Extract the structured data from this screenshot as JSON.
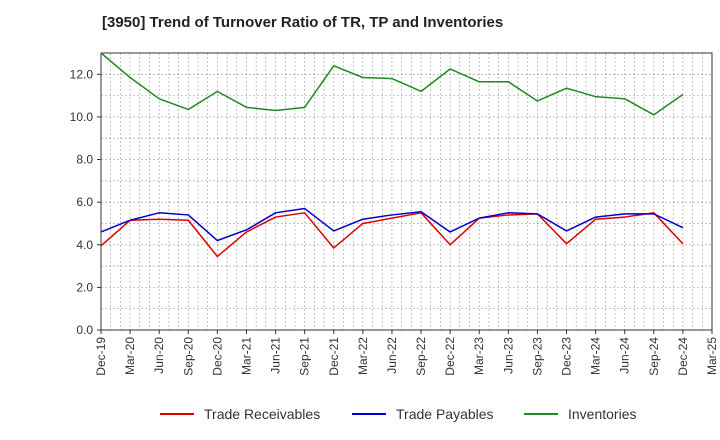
{
  "chart_data": {
    "type": "line",
    "title": "[3950]  Trend of Turnover Ratio of TR, TP and Inventories",
    "xlabel": "",
    "ylabel": "",
    "ylim": [
      0,
      13
    ],
    "yticks": [
      0,
      2,
      4,
      6,
      8,
      10,
      12
    ],
    "ytick_labels": [
      "0.0",
      "2.0",
      "4.0",
      "6.0",
      "8.0",
      "10.0",
      "12.0"
    ],
    "x": [
      "Dec-19",
      "Jan-20",
      "Feb-20",
      "Mar-20",
      "Apr-20",
      "May-20",
      "Jun-20",
      "Jul-20",
      "Aug-20",
      "Sep-20",
      "Oct-20",
      "Nov-20",
      "Dec-20",
      "Jan-21",
      "Feb-21",
      "Mar-21",
      "Apr-21",
      "May-21",
      "Jun-21",
      "Jul-21",
      "Aug-21",
      "Sep-21",
      "Oct-21",
      "Nov-21",
      "Dec-21",
      "Jan-22",
      "Feb-22",
      "Mar-22",
      "Apr-22",
      "May-22",
      "Jun-22",
      "Jul-22",
      "Aug-22",
      "Sep-22",
      "Oct-22",
      "Nov-22",
      "Dec-22",
      "Jan-23",
      "Feb-23",
      "Mar-23",
      "Apr-23",
      "May-23",
      "Jun-23",
      "Jul-23",
      "Aug-23",
      "Sep-23",
      "Oct-23",
      "Nov-23",
      "Dec-23",
      "Jan-24",
      "Feb-24",
      "Mar-24",
      "Apr-24",
      "May-24",
      "Jun-24",
      "Jul-24",
      "Aug-24",
      "Sep-24",
      "Oct-24",
      "Nov-24",
      "Dec-24",
      "Jan-25",
      "Feb-25",
      "Mar-25"
    ],
    "xtick_labels": [
      "Dec-19",
      "Mar-20",
      "Jun-20",
      "Sep-20",
      "Dec-20",
      "Mar-21",
      "Jun-21",
      "Sep-21",
      "Dec-21",
      "Mar-22",
      "Jun-22",
      "Sep-22",
      "Dec-22",
      "Mar-23",
      "Jun-23",
      "Sep-23",
      "Dec-23",
      "Mar-24",
      "Jun-24",
      "Sep-24",
      "Dec-24",
      "Mar-25"
    ],
    "grid": true,
    "legend_position": "bottom",
    "series": [
      {
        "name": "Trade Receivables",
        "color": "#dd0000",
        "points": [
          {
            "x": "Dec-19",
            "y": 3.95
          },
          {
            "x": "Mar-20",
            "y": 5.15
          },
          {
            "x": "Jun-20",
            "y": 5.2
          },
          {
            "x": "Sep-20",
            "y": 5.15
          },
          {
            "x": "Dec-20",
            "y": 3.45
          },
          {
            "x": "Mar-21",
            "y": 4.6
          },
          {
            "x": "Jun-21",
            "y": 5.3
          },
          {
            "x": "Sep-21",
            "y": 5.5
          },
          {
            "x": "Dec-21",
            "y": 3.85
          },
          {
            "x": "Mar-22",
            "y": 5.0
          },
          {
            "x": "Jun-22",
            "y": 5.25
          },
          {
            "x": "Sep-22",
            "y": 5.5
          },
          {
            "x": "Dec-22",
            "y": 4.0
          },
          {
            "x": "Mar-23",
            "y": 5.25
          },
          {
            "x": "Jun-23",
            "y": 5.4
          },
          {
            "x": "Sep-23",
            "y": 5.45
          },
          {
            "x": "Dec-23",
            "y": 4.05
          },
          {
            "x": "Mar-24",
            "y": 5.2
          },
          {
            "x": "Jun-24",
            "y": 5.3
          },
          {
            "x": "Sep-24",
            "y": 5.5
          },
          {
            "x": "Dec-24",
            "y": 4.05
          }
        ]
      },
      {
        "name": "Trade Payables",
        "color": "#0000cc",
        "points": [
          {
            "x": "Dec-19",
            "y": 4.6
          },
          {
            "x": "Mar-20",
            "y": 5.15
          },
          {
            "x": "Jun-20",
            "y": 5.5
          },
          {
            "x": "Sep-20",
            "y": 5.4
          },
          {
            "x": "Dec-20",
            "y": 4.2
          },
          {
            "x": "Mar-21",
            "y": 4.7
          },
          {
            "x": "Jun-21",
            "y": 5.5
          },
          {
            "x": "Sep-21",
            "y": 5.7
          },
          {
            "x": "Dec-21",
            "y": 4.65
          },
          {
            "x": "Mar-22",
            "y": 5.2
          },
          {
            "x": "Jun-22",
            "y": 5.4
          },
          {
            "x": "Sep-22",
            "y": 5.55
          },
          {
            "x": "Dec-22",
            "y": 4.6
          },
          {
            "x": "Mar-23",
            "y": 5.25
          },
          {
            "x": "Jun-23",
            "y": 5.5
          },
          {
            "x": "Sep-23",
            "y": 5.45
          },
          {
            "x": "Dec-23",
            "y": 4.65
          },
          {
            "x": "Mar-24",
            "y": 5.3
          },
          {
            "x": "Jun-24",
            "y": 5.45
          },
          {
            "x": "Sep-24",
            "y": 5.45
          },
          {
            "x": "Dec-24",
            "y": 4.8
          }
        ]
      },
      {
        "name": "Inventories",
        "color": "#228822",
        "points": [
          {
            "x": "Dec-19",
            "y": 13.0
          },
          {
            "x": "Mar-20",
            "y": 11.85
          },
          {
            "x": "Jun-20",
            "y": 10.85
          },
          {
            "x": "Sep-20",
            "y": 10.35
          },
          {
            "x": "Dec-20",
            "y": 11.2
          },
          {
            "x": "Mar-21",
            "y": 10.45
          },
          {
            "x": "Jun-21",
            "y": 10.3
          },
          {
            "x": "Sep-21",
            "y": 10.45
          },
          {
            "x": "Dec-21",
            "y": 12.4
          },
          {
            "x": "Mar-22",
            "y": 11.85
          },
          {
            "x": "Jun-22",
            "y": 11.8
          },
          {
            "x": "Sep-22",
            "y": 11.2
          },
          {
            "x": "Dec-22",
            "y": 12.25
          },
          {
            "x": "Mar-23",
            "y": 11.65
          },
          {
            "x": "Jun-23",
            "y": 11.65
          },
          {
            "x": "Sep-23",
            "y": 10.75
          },
          {
            "x": "Dec-23",
            "y": 11.35
          },
          {
            "x": "Mar-24",
            "y": 10.95
          },
          {
            "x": "Jun-24",
            "y": 10.85
          },
          {
            "x": "Sep-24",
            "y": 10.1
          },
          {
            "x": "Dec-24",
            "y": 11.05
          }
        ]
      }
    ]
  }
}
